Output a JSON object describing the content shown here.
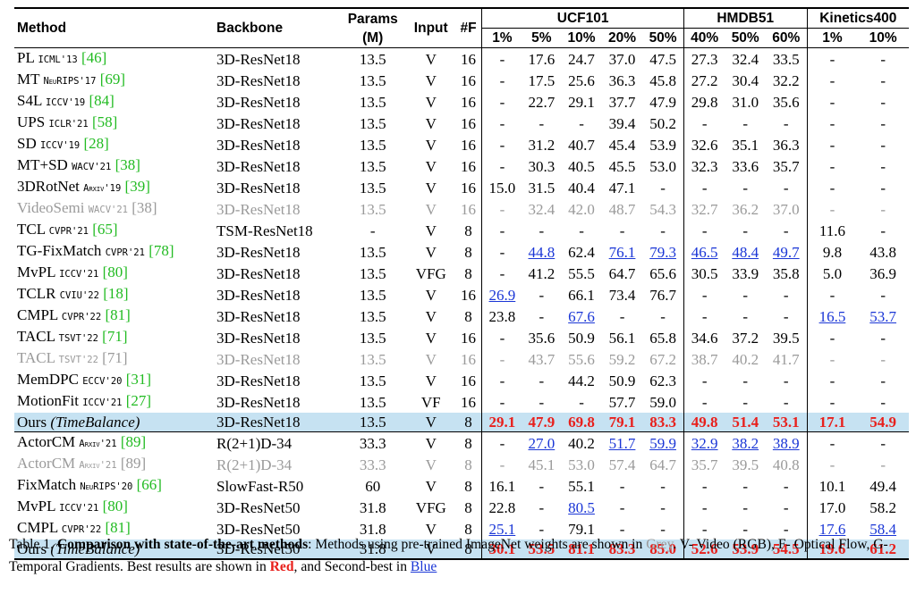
{
  "table": {
    "headers": {
      "method": "Method",
      "backbone": "Backbone",
      "params_line1": "Params",
      "params_line2": "(M)",
      "input": "Input",
      "frames": "#F",
      "groups": [
        {
          "name": "UCF101",
          "cols": [
            "1%",
            "5%",
            "10%",
            "20%",
            "50%"
          ]
        },
        {
          "name": "HMDB51",
          "cols": [
            "40%",
            "50%",
            "60%"
          ]
        },
        {
          "name": "Kinetics400",
          "cols": [
            "1%",
            "10%"
          ]
        }
      ]
    },
    "rows": [
      {
        "method": "PL",
        "venue": "ICML'13",
        "cite": "46",
        "backbone": "3D-ResNet18",
        "params": "13.5",
        "input": "V",
        "frames": "16",
        "vals": [
          "-",
          "17.6",
          "24.7",
          "37.0",
          "47.5",
          "27.3",
          "32.4",
          "33.5",
          "-",
          "-"
        ]
      },
      {
        "method": "MT",
        "venue": "NeuRIPS'17",
        "cite": "69",
        "backbone": "3D-ResNet18",
        "params": "13.5",
        "input": "V",
        "frames": "16",
        "vals": [
          "-",
          "17.5",
          "25.6",
          "36.3",
          "45.8",
          "27.2",
          "30.4",
          "32.2",
          "-",
          "-"
        ]
      },
      {
        "method": "S4L",
        "venue": "ICCV'19",
        "cite": "84",
        "backbone": "3D-ResNet18",
        "params": "13.5",
        "input": "V",
        "frames": "16",
        "vals": [
          "-",
          "22.7",
          "29.1",
          "37.7",
          "47.9",
          "29.8",
          "31.0",
          "35.6",
          "-",
          "-"
        ]
      },
      {
        "method": "UPS",
        "venue": "ICLR'21",
        "cite": "58",
        "backbone": "3D-ResNet18",
        "params": "13.5",
        "input": "V",
        "frames": "16",
        "vals": [
          "-",
          "-",
          "-",
          "39.4",
          "50.2",
          "-",
          "-",
          "-",
          "-",
          "-"
        ]
      },
      {
        "method": "SD",
        "venue": "ICCV'19",
        "cite": "28",
        "backbone": "3D-ResNet18",
        "params": "13.5",
        "input": "V",
        "frames": "16",
        "vals": [
          "-",
          "31.2",
          "40.7",
          "45.4",
          "53.9",
          "32.6",
          "35.1",
          "36.3",
          "-",
          "-"
        ]
      },
      {
        "method": "MT+SD",
        "venue": "WACV'21",
        "cite": "38",
        "backbone": "3D-ResNet18",
        "params": "13.5",
        "input": "V",
        "frames": "16",
        "vals": [
          "-",
          "30.3",
          "40.5",
          "45.5",
          "53.0",
          "32.3",
          "33.6",
          "35.7",
          "-",
          "-"
        ]
      },
      {
        "method": "3DRotNet",
        "venue": "Arxiv'19",
        "cite": "39",
        "backbone": "3D-ResNet18",
        "params": "13.5",
        "input": "V",
        "frames": "16",
        "vals": [
          "15.0",
          "31.5",
          "40.4",
          "47.1",
          "-",
          "-",
          "-",
          "-",
          "-",
          "-"
        ]
      },
      {
        "method": "VideoSemi",
        "venue": "WACV'21",
        "cite": "38",
        "backbone": "3D-ResNet18",
        "params": "13.5",
        "input": "V",
        "frames": "16",
        "grey": true,
        "vals": [
          "-",
          "32.4",
          "42.0",
          "48.7",
          "54.3",
          "32.7",
          "36.2",
          "37.0",
          "-",
          "-"
        ]
      },
      {
        "method": "TCL",
        "venue": "CVPR'21",
        "cite": "65",
        "backbone": "TSM-ResNet18",
        "params": "-",
        "input": "V",
        "frames": "8",
        "vals": [
          "-",
          "-",
          "-",
          "-",
          "-",
          "-",
          "-",
          "-",
          "11.6",
          "-"
        ]
      },
      {
        "method": "TG-FixMatch",
        "venue": "CVPR'21",
        "cite": "78",
        "backbone": "3D-ResNet18",
        "params": "13.5",
        "input": "V",
        "frames": "8",
        "vals": [
          "-",
          "44.8",
          "62.4",
          "76.1",
          "79.3",
          "46.5",
          "48.4",
          "49.7",
          "9.8",
          "43.8"
        ],
        "blue": [
          1,
          3,
          4,
          5,
          6,
          7
        ]
      },
      {
        "method": "MvPL",
        "venue": "ICCV'21",
        "cite": "80",
        "backbone": "3D-ResNet18",
        "params": "13.5",
        "input": "VFG",
        "frames": "8",
        "vals": [
          "-",
          "41.2",
          "55.5",
          "64.7",
          "65.6",
          "30.5",
          "33.9",
          "35.8",
          "5.0",
          "36.9"
        ]
      },
      {
        "method": "TCLR",
        "venue": "CVIU'22",
        "cite": "18",
        "backbone": "3D-ResNet18",
        "params": "13.5",
        "input": "V",
        "frames": "16",
        "vals": [
          "26.9",
          "-",
          "66.1",
          "73.4",
          "76.7",
          "-",
          "-",
          "-",
          "-",
          "-"
        ],
        "blue": [
          0
        ]
      },
      {
        "method": "CMPL",
        "venue": "CVPR'22",
        "cite": "81",
        "backbone": "3D-ResNet18",
        "params": "13.5",
        "input": "V",
        "frames": "8",
        "vals": [
          "23.8",
          "-",
          "67.6",
          "-",
          "-",
          "-",
          "-",
          "-",
          "16.5",
          "53.7"
        ],
        "blue": [
          2,
          8,
          9
        ]
      },
      {
        "method": "TACL",
        "venue": "TSVT'22",
        "cite": "71",
        "backbone": "3D-ResNet18",
        "params": "13.5",
        "input": "V",
        "frames": "16",
        "vals": [
          "-",
          "35.6",
          "50.9",
          "56.1",
          "65.8",
          "34.6",
          "37.2",
          "39.5",
          "-",
          "-"
        ]
      },
      {
        "method": "TACL",
        "venue": "TSVT'22",
        "cite": "71",
        "backbone": "3D-ResNet18",
        "params": "13.5",
        "input": "V",
        "frames": "16",
        "grey": true,
        "vals": [
          "-",
          "43.7",
          "55.6",
          "59.2",
          "67.2",
          "38.7",
          "40.2",
          "41.7",
          "-",
          "-"
        ]
      },
      {
        "method": "MemDPC",
        "venue": "ECCV'20",
        "cite": "31",
        "backbone": "3D-ResNet18",
        "params": "13.5",
        "input": "V",
        "frames": "16",
        "vals": [
          "-",
          "-",
          "44.2",
          "50.9",
          "62.3",
          "-",
          "-",
          "-",
          "-",
          "-"
        ]
      },
      {
        "method": "MotionFit",
        "venue": "ICCV'21",
        "cite": "27",
        "backbone": "3D-ResNet18",
        "params": "13.5",
        "input": "VF",
        "frames": "16",
        "vals": [
          "-",
          "-",
          "-",
          "57.7",
          "59.0",
          "-",
          "-",
          "-",
          "-",
          "-"
        ]
      },
      {
        "method": "Ours",
        "tb": "(TimeBalance)",
        "backbone": "3D-ResNet18",
        "params": "13.5",
        "input": "V",
        "frames": "8",
        "ours": true,
        "vals": [
          "29.1",
          "47.9",
          "69.8",
          "79.1",
          "83.3",
          "49.8",
          "51.4",
          "53.1",
          "17.1",
          "54.9"
        ],
        "red": [
          0,
          1,
          2,
          3,
          4,
          5,
          6,
          7,
          8,
          9
        ]
      },
      {
        "method": "ActorCM",
        "venue": "Arxiv'21",
        "cite": "89",
        "backbone": "R(2+1)D-34",
        "params": "33.3",
        "input": "V",
        "frames": "8",
        "sep": true,
        "vals": [
          "-",
          "27.0",
          "40.2",
          "51.7",
          "59.9",
          "32.9",
          "38.2",
          "38.9",
          "-",
          "-"
        ],
        "blue": [
          1,
          3,
          4,
          5,
          6,
          7
        ]
      },
      {
        "method": "ActorCM",
        "venue": "Arxiv'21",
        "cite": "89",
        "backbone": "R(2+1)D-34",
        "params": "33.3",
        "input": "V",
        "frames": "8",
        "grey": true,
        "vals": [
          "-",
          "45.1",
          "53.0",
          "57.4",
          "64.7",
          "35.7",
          "39.5",
          "40.8",
          "-",
          "-"
        ]
      },
      {
        "method": "FixMatch",
        "venue": "NeuRIPS'20",
        "cite": "66",
        "backbone": "SlowFast-R50",
        "params": "60",
        "input": "V",
        "frames": "8",
        "vals": [
          "16.1",
          "-",
          "55.1",
          "-",
          "-",
          "-",
          "-",
          "-",
          "10.1",
          "49.4"
        ]
      },
      {
        "method": "MvPL",
        "venue": "ICCV'21",
        "cite": "80",
        "backbone": "3D-ResNet50",
        "params": "31.8",
        "input": "VFG",
        "frames": "8",
        "vals": [
          "22.8",
          "-",
          "80.5",
          "-",
          "-",
          "-",
          "-",
          "-",
          "17.0",
          "58.2"
        ],
        "blue": [
          2
        ]
      },
      {
        "method": "CMPL",
        "venue": "CVPR'22",
        "cite": "81",
        "backbone": "3D-ResNet50",
        "params": "31.8",
        "input": "V",
        "frames": "8",
        "vals": [
          "25.1",
          "-",
          "79.1",
          "-",
          "-",
          "-",
          "-",
          "-",
          "17.6",
          "58.4"
        ],
        "blue": [
          0,
          8,
          9
        ]
      },
      {
        "method": "Ours",
        "tb": "(TimeBalance)",
        "backbone": "3D-ResNet50",
        "params": "31.8",
        "input": "V",
        "frames": "8",
        "ours": true,
        "vals": [
          "30.1",
          "53.5",
          "81.1",
          "83.3",
          "85.0",
          "52.6",
          "53.9",
          "54.5",
          "19.6",
          "61.2"
        ],
        "red": [
          0,
          1,
          2,
          3,
          4,
          5,
          6,
          7,
          8,
          9
        ]
      }
    ]
  },
  "caption": {
    "label": "Table 1.",
    "bold": "Comparison with state-of-the-art methods",
    "t1": ": Methods using pre-trained ImageNet weights are shown in",
    "grey_word": "Grey",
    "t2": ". V- Video (RGB), F- Optical Flow, G- Temporal Gradients. Best results are shown in",
    "red_word": "Red",
    "t3": ", and Second-best in",
    "blue_word": "Blue"
  }
}
